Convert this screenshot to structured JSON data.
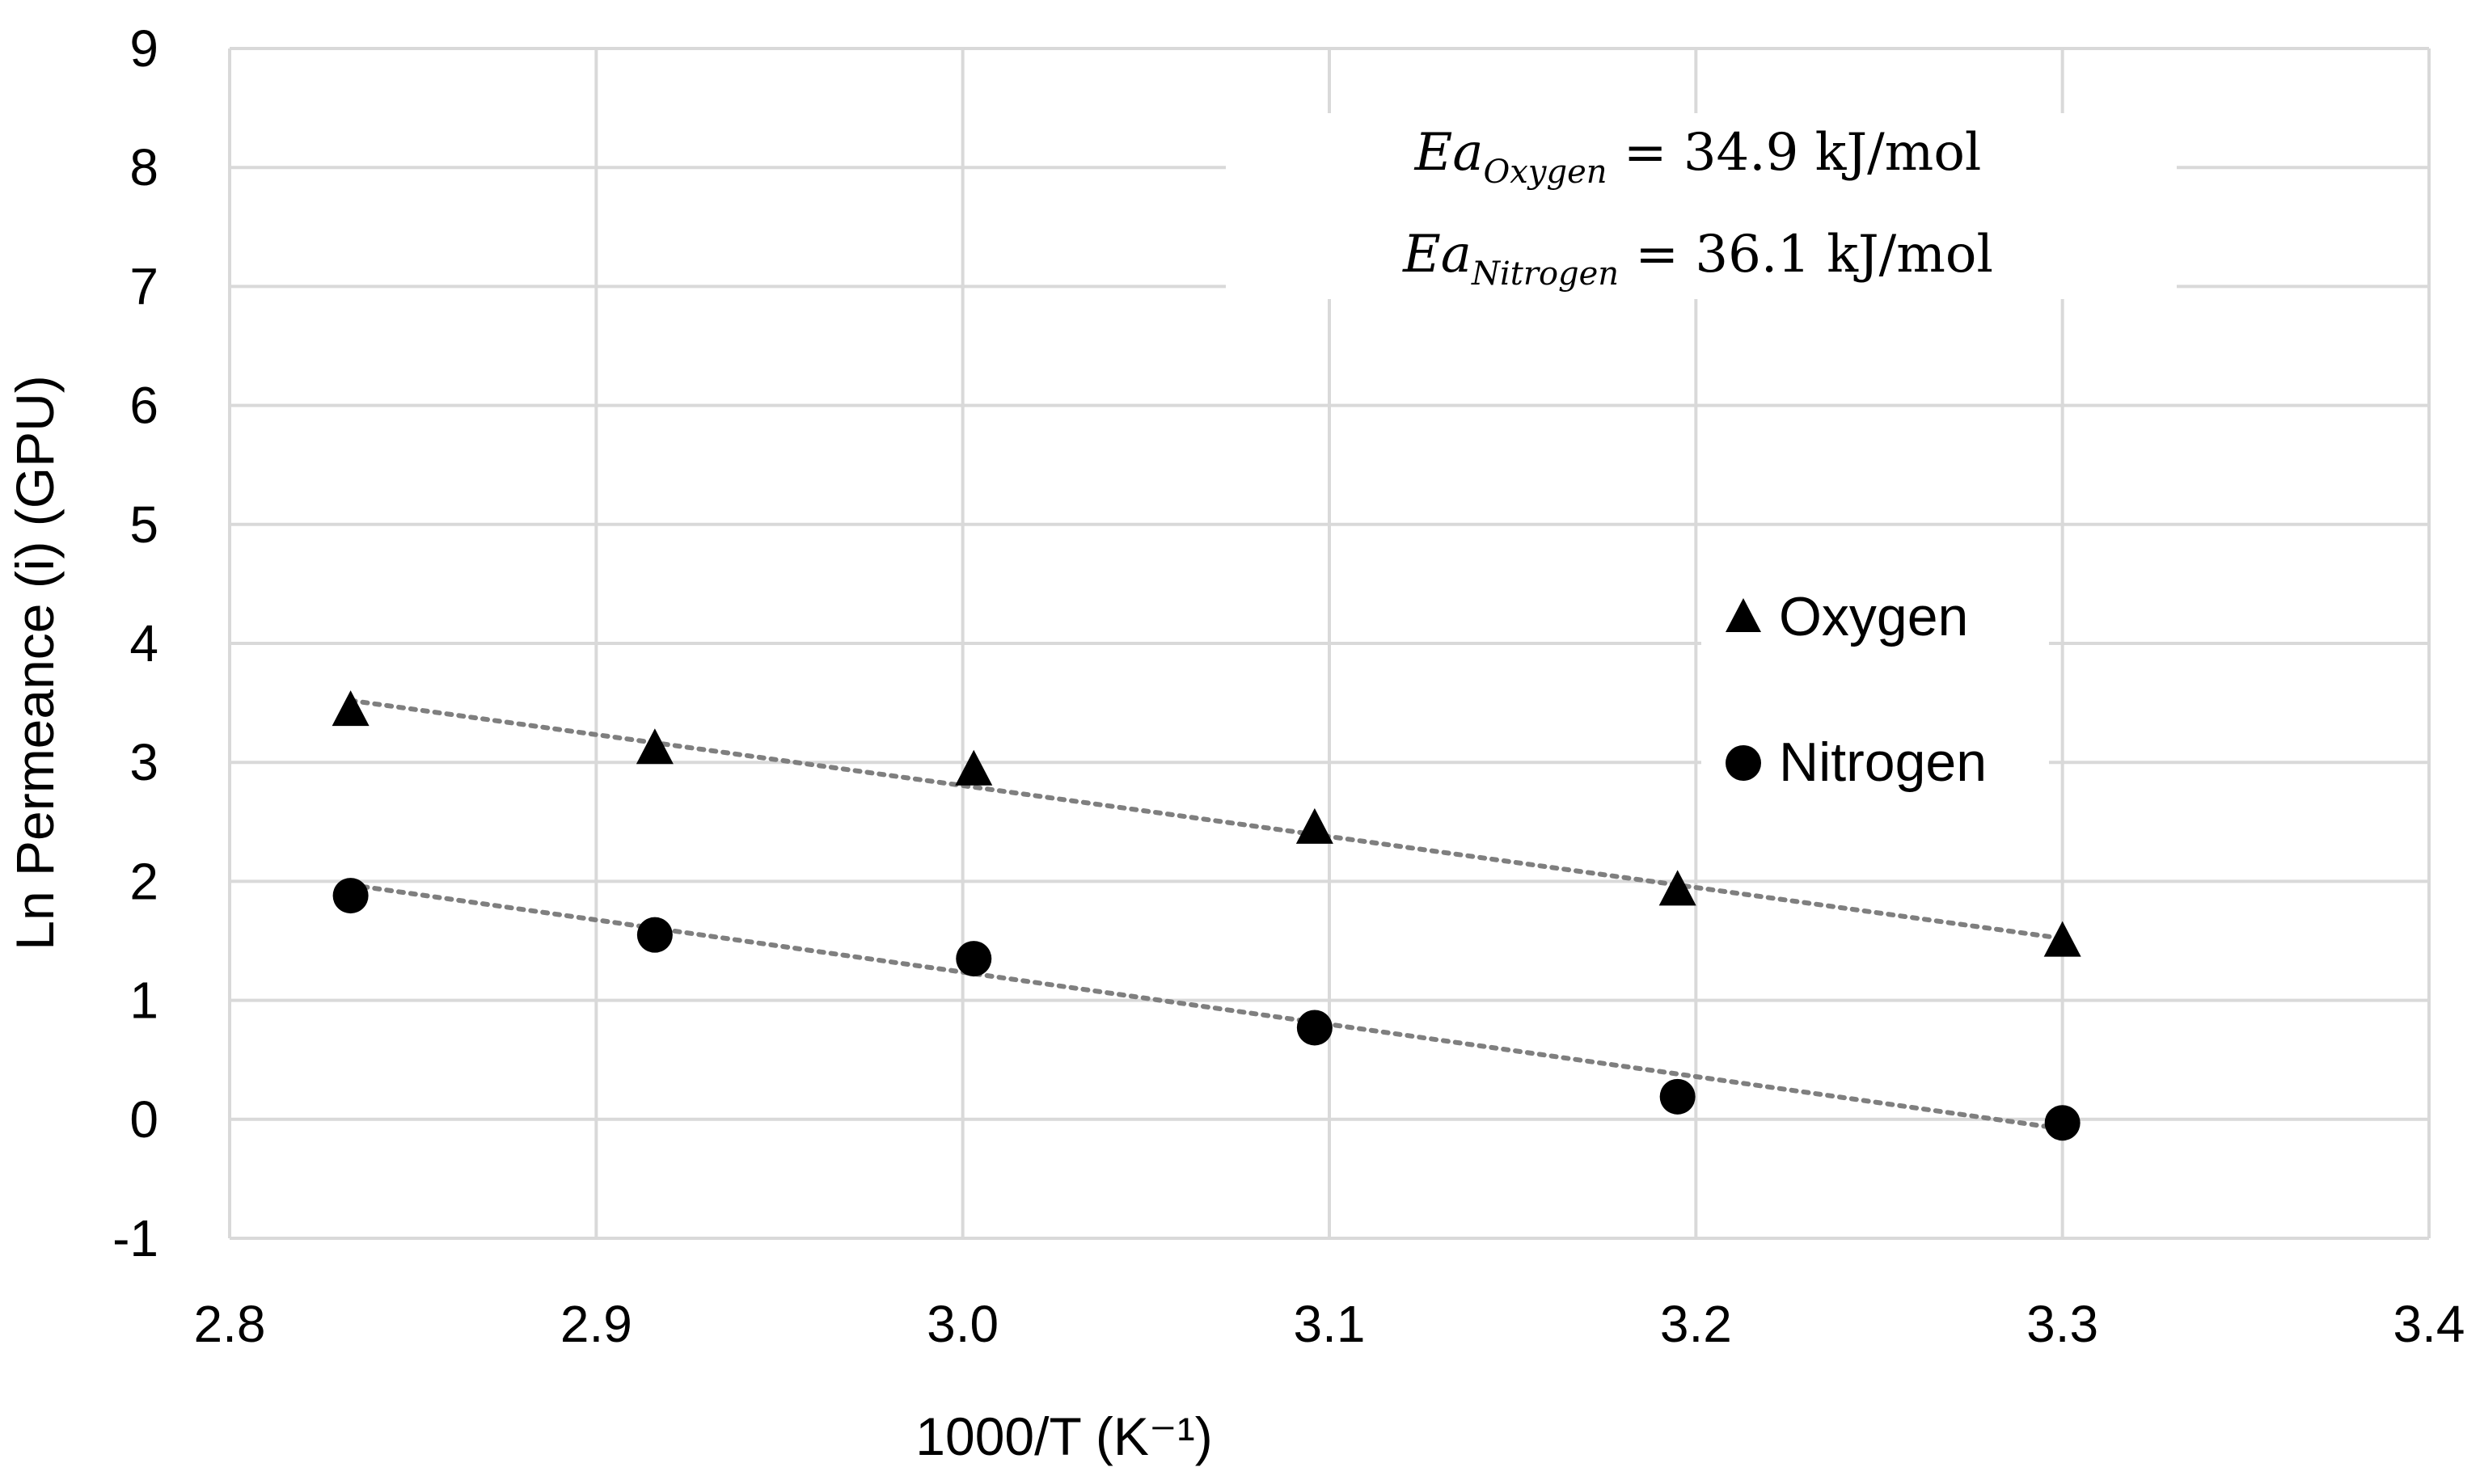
{
  "chart_data": {
    "type": "scatter",
    "title": "",
    "xlabel": "1000/T (K⁻¹)",
    "ylabel": "Ln Permeance (i)  (GPU)",
    "xlim": [
      2.8,
      3.4
    ],
    "ylim": [
      -1,
      9
    ],
    "x_ticks": [
      "2.8",
      "2.9",
      "3.0",
      "3.1",
      "3.2",
      "3.3",
      "3.4"
    ],
    "y_ticks": [
      "-1",
      "0",
      "1",
      "2",
      "3",
      "4",
      "5",
      "6",
      "7",
      "8",
      "9"
    ],
    "grid": true,
    "legend_position": "right",
    "series": [
      {
        "name": "Oxygen",
        "marker": "triangle",
        "color": "#000000",
        "x": [
          2.833,
          2.916,
          3.003,
          3.096,
          3.195,
          3.3
        ],
        "y": [
          3.42,
          3.1,
          2.92,
          2.43,
          1.91,
          1.48
        ],
        "trendline": {
          "x": [
            2.833,
            3.3
          ],
          "y": [
            3.52,
            1.52
          ]
        }
      },
      {
        "name": "Nitrogen",
        "marker": "circle",
        "color": "#000000",
        "x": [
          2.833,
          2.916,
          3.003,
          3.096,
          3.195,
          3.3
        ],
        "y": [
          1.88,
          1.55,
          1.35,
          0.77,
          0.19,
          -0.03
        ],
        "trendline": {
          "x": [
            2.833,
            3.3
          ],
          "y": [
            1.97,
            -0.08
          ]
        }
      }
    ],
    "annotations": [
      {
        "base": "Ea",
        "sub": "Oxygen",
        "rest": " = 34.9 kJ/mol"
      },
      {
        "base": "Ea",
        "sub": "Nitrogen",
        "rest": " = 36.1 kJ/mol"
      }
    ],
    "colors": {
      "grid": "#d9d9d9",
      "trendline": "#7f7f7f",
      "marker": "#000000"
    }
  }
}
